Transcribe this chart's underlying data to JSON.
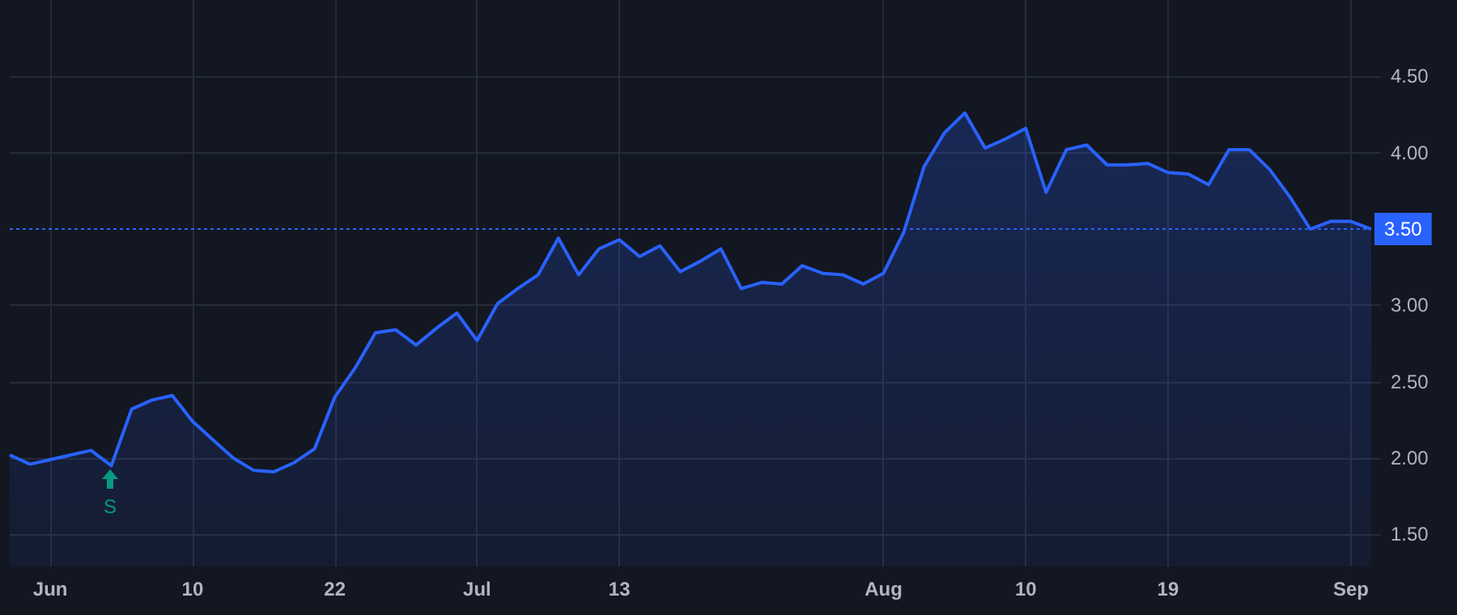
{
  "chart_data": {
    "type": "area",
    "categories": [
      null,
      null,
      "Jun",
      null,
      null,
      null,
      null,
      null,
      null,
      "10",
      null,
      null,
      null,
      null,
      null,
      null,
      "22",
      null,
      null,
      null,
      null,
      null,
      null,
      "Jul",
      null,
      null,
      null,
      null,
      null,
      null,
      "13",
      null,
      null,
      null,
      null,
      null,
      null,
      null,
      null,
      null,
      null,
      null,
      null,
      "Aug",
      null,
      null,
      null,
      null,
      null,
      null,
      "10",
      null,
      null,
      null,
      null,
      null,
      null,
      "19",
      null,
      null,
      null,
      null,
      null,
      null,
      null,
      null,
      "Sep",
      null
    ],
    "series": [
      {
        "color": "#2962ff",
        "values": [
          2.02,
          1.96,
          1.99,
          2.02,
          2.05,
          1.95,
          2.32,
          2.38,
          2.41,
          2.24,
          2.12,
          2.0,
          1.92,
          1.91,
          1.97,
          2.06,
          2.4,
          2.59,
          2.82,
          2.84,
          2.74,
          2.85,
          2.95,
          2.77,
          3.01,
          3.11,
          3.2,
          3.44,
          3.2,
          3.37,
          3.43,
          3.32,
          3.39,
          3.22,
          3.29,
          3.37,
          3.11,
          3.15,
          3.14,
          3.26,
          3.21,
          3.2,
          3.14,
          3.21,
          3.48,
          3.91,
          4.13,
          4.26,
          4.03,
          4.09,
          4.16,
          3.74,
          4.02,
          4.05,
          3.92,
          3.92,
          3.93,
          3.87,
          3.86,
          3.79,
          4.02,
          4.02,
          3.89,
          3.71,
          3.5,
          3.55,
          3.55,
          3.5
        ]
      }
    ],
    "ylim": [
      1.29,
      5.0
    ],
    "yticks": [
      {
        "value": 1.5,
        "label": "1.50"
      },
      {
        "value": 2.0,
        "label": "2.00"
      },
      {
        "value": 2.5,
        "label": "2.50"
      },
      {
        "value": 3.0,
        "label": "3.00"
      },
      {
        "value": 4.0,
        "label": "4.00"
      },
      {
        "value": 4.5,
        "label": "4.50"
      }
    ],
    "ref_lines": [
      {
        "axis": "y",
        "value": 3.5,
        "label": "3.50",
        "color": "#2962ff",
        "line_style": "dotted"
      }
    ],
    "annotations": [
      "S"
    ],
    "grid": true,
    "marker": "none",
    "line_style": "solid"
  }
}
